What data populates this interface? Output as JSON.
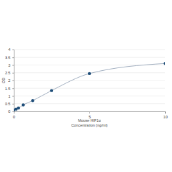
{
  "chart_data": {
    "type": "line",
    "xlabel": [
      "Mouse HIF1α",
      "Concentration (ng/ml)"
    ],
    "ylabel": "OD",
    "x": [
      0,
      0.156,
      0.3125,
      0.625,
      1.25,
      2.5,
      5,
      10
    ],
    "values": [
      0.1,
      0.15,
      0.22,
      0.42,
      0.7,
      1.35,
      2.45,
      3.1
    ],
    "color": "#1f4e79",
    "marker": "circle",
    "xlim": [
      0,
      10
    ],
    "xticks": [
      0,
      5,
      10
    ],
    "ylim": [
      0,
      4
    ],
    "yticks": [
      0,
      0.5,
      1,
      1.5,
      2,
      2.5,
      3,
      3.5,
      4
    ],
    "grid": true
  }
}
